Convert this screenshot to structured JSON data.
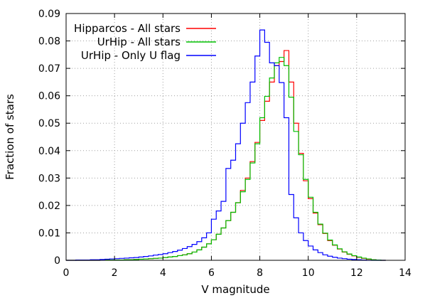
{
  "chart_data": {
    "type": "line",
    "xlabel": "V magnitude",
    "ylabel": "Fraction of stars",
    "xlim": [
      0,
      14
    ],
    "ylim": [
      0,
      0.09
    ],
    "x_ticks": [
      "0",
      "2",
      "4",
      "6",
      "8",
      "10",
      "12",
      "14"
    ],
    "y_ticks": [
      "0",
      "0.01",
      "0.02",
      "0.03",
      "0.04",
      "0.05",
      "0.06",
      "0.07",
      "0.08",
      "0.09"
    ],
    "grid": true,
    "grid_style": "dotted",
    "legend_position": "top-left",
    "step_width": 0.2,
    "bin_starts": [
      0,
      0.2,
      0.4,
      0.6,
      0.8,
      1.0,
      1.2,
      1.4,
      1.6,
      1.8,
      2.0,
      2.2,
      2.4,
      2.6,
      2.8,
      3.0,
      3.2,
      3.4,
      3.6,
      3.8,
      4.0,
      4.2,
      4.4,
      4.6,
      4.8,
      5.0,
      5.2,
      5.4,
      5.6,
      5.8,
      6.0,
      6.2,
      6.4,
      6.6,
      6.8,
      7.0,
      7.2,
      7.4,
      7.6,
      7.8,
      8.0,
      8.2,
      8.4,
      8.6,
      8.8,
      9.0,
      9.2,
      9.4,
      9.6,
      9.8,
      10.0,
      10.2,
      10.4,
      10.6,
      10.8,
      11.0,
      11.2,
      11.4,
      11.6,
      11.8,
      12.0,
      12.2,
      12.4,
      12.6,
      12.8,
      13.0
    ],
    "series": [
      {
        "name": "Hipparcos - All stars",
        "color": "#ff0000",
        "values": [
          0,
          0,
          0,
          0,
          0,
          0,
          0,
          0.0001,
          0.0001,
          0.0001,
          0.0001,
          0.0001,
          0.0002,
          0.0002,
          0.0003,
          0.0004,
          0.0005,
          0.0006,
          0.0007,
          0.0008,
          0.001,
          0.0012,
          0.0014,
          0.0017,
          0.002,
          0.0024,
          0.003,
          0.0038,
          0.0048,
          0.006,
          0.0075,
          0.0095,
          0.0118,
          0.0145,
          0.0175,
          0.021,
          0.0255,
          0.03,
          0.036,
          0.043,
          0.051,
          0.058,
          0.065,
          0.071,
          0.0725,
          0.0765,
          0.065,
          0.05,
          0.039,
          0.029,
          0.0225,
          0.0172,
          0.013,
          0.0098,
          0.0072,
          0.0055,
          0.0041,
          0.003,
          0.0022,
          0.0016,
          0.0011,
          0.0007,
          0.0004,
          0.0002,
          0.0001,
          0
        ]
      },
      {
        "name": "UrHip - All stars",
        "color": "#00c000",
        "values": [
          0,
          0,
          0,
          0,
          0,
          0,
          0,
          0.0001,
          0.0001,
          0.0001,
          0.0001,
          0.0001,
          0.0002,
          0.0002,
          0.0003,
          0.0004,
          0.0005,
          0.0006,
          0.0007,
          0.0008,
          0.001,
          0.0012,
          0.0014,
          0.0017,
          0.002,
          0.0024,
          0.003,
          0.0038,
          0.0048,
          0.006,
          0.0075,
          0.0095,
          0.0118,
          0.0145,
          0.0175,
          0.021,
          0.025,
          0.0295,
          0.0355,
          0.0425,
          0.052,
          0.0598,
          0.0665,
          0.072,
          0.074,
          0.071,
          0.0595,
          0.047,
          0.0385,
          0.0295,
          0.023,
          0.0175,
          0.0132,
          0.0099,
          0.0074,
          0.0056,
          0.0042,
          0.0031,
          0.0023,
          0.0017,
          0.0012,
          0.0008,
          0.0005,
          0.0002,
          0.0001,
          0
        ]
      },
      {
        "name": "UrHip - Only U flag",
        "color": "#0000ff",
        "values": [
          0,
          0,
          0.0001,
          0.0001,
          0.0001,
          0.0002,
          0.0002,
          0.0003,
          0.0004,
          0.0005,
          0.0006,
          0.0007,
          0.0008,
          0.0009,
          0.001,
          0.0012,
          0.0014,
          0.0016,
          0.0019,
          0.0021,
          0.0024,
          0.0028,
          0.0032,
          0.0037,
          0.0043,
          0.005,
          0.0058,
          0.0068,
          0.0082,
          0.01,
          0.015,
          0.018,
          0.0215,
          0.0335,
          0.0365,
          0.0425,
          0.05,
          0.0575,
          0.065,
          0.0745,
          0.084,
          0.0795,
          0.072,
          0.071,
          0.0648,
          0.052,
          0.024,
          0.0155,
          0.01,
          0.0072,
          0.0052,
          0.0038,
          0.0028,
          0.002,
          0.0015,
          0.0011,
          0.0008,
          0.0006,
          0.0004,
          0.0003,
          0.0002,
          0.0001,
          0,
          0,
          0,
          0
        ]
      }
    ]
  }
}
